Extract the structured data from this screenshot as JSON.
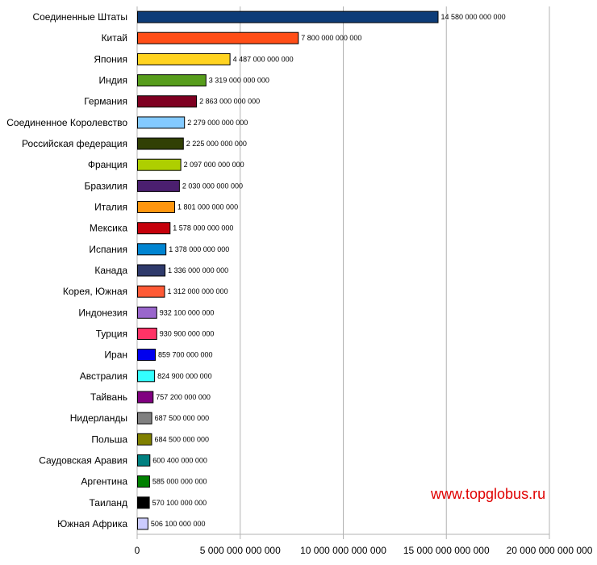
{
  "chart_data": {
    "type": "bar",
    "orientation": "horizontal",
    "categories": [
      "Соединенные Штаты",
      "Китай",
      "Япония",
      "Индия",
      "Германия",
      "Соединенное Королевство",
      "Российская федерация",
      "Франция",
      "Бразилия",
      "Италия",
      "Мексика",
      "Испания",
      "Канада",
      "Корея, Южная",
      "Индонезия",
      "Турция",
      "Иран",
      "Австралия",
      "Тайвань",
      "Нидерланды",
      "Польша",
      "Саудовская Аравия",
      "Аргентина",
      "Таиланд",
      "Южная Африка"
    ],
    "values": [
      14580000000000,
      7800000000000,
      4487000000000,
      3319000000000,
      2863000000000,
      2279000000000,
      2225000000000,
      2097000000000,
      2030000000000,
      1801000000000,
      1578000000000,
      1378000000000,
      1336000000000,
      1312000000000,
      932100000000,
      930900000000,
      859700000000,
      824900000000,
      757200000000,
      687500000000,
      684500000000,
      600400000000,
      585000000000,
      570100000000,
      506100000000
    ],
    "value_labels": [
      "14 580 000 000 000",
      "7 800 000 000 000",
      "4 487 000 000 000",
      "3 319 000 000 000",
      "2 863 000 000 000",
      "2 279 000 000 000",
      "2 225 000 000 000",
      "2 097 000 000 000",
      "2 030 000 000 000",
      "1 801 000 000 000",
      "1 578 000 000 000",
      "1 378 000 000 000",
      "1 336 000 000 000",
      "1 312 000 000 000",
      "932 100 000 000",
      "930 900 000 000",
      "859 700 000 000",
      "824 900 000 000",
      "757 200 000 000",
      "687 500 000 000",
      "684 500 000 000",
      "600 400 000 000",
      "585 000 000 000",
      "570 100 000 000",
      "506 100 000 000"
    ],
    "colors": [
      "#0d3c78",
      "#ff4e17",
      "#ffd320",
      "#579d1c",
      "#7e0021",
      "#83caff",
      "#314004",
      "#aecf00",
      "#4b1f6f",
      "#ff950e",
      "#c5000b",
      "#0084d1",
      "#2f3a6b",
      "#ff5a36",
      "#9966cc",
      "#ff3366",
      "#0000ee",
      "#33ffff",
      "#800080",
      "#808080",
      "#808000",
      "#008080",
      "#008000",
      "#000000",
      "#ccccff"
    ],
    "x_ticks": [
      "0",
      "5 000 000 000 000",
      "10 000 000 000 000",
      "15 000 000 000 000",
      "20 000 000 000 000"
    ],
    "x_tick_values": [
      0,
      5000000000000,
      10000000000000,
      15000000000000,
      20000000000000
    ],
    "xlim": [
      0,
      20000000000000
    ],
    "grid": true,
    "title": "",
    "xlabel": "",
    "ylabel": ""
  },
  "watermark": "www.topglobus.ru"
}
